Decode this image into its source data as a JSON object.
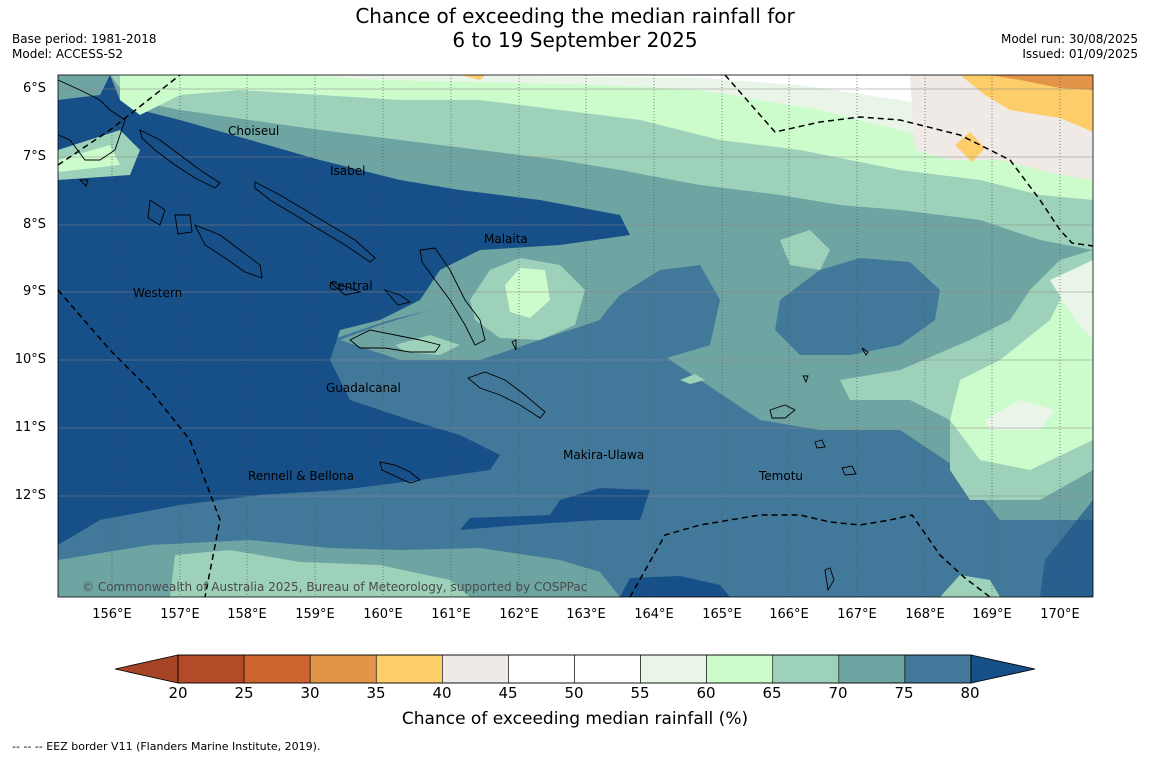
{
  "title": {
    "line1": "Chance of exceeding the median rainfall for",
    "line2": "6 to 19 September 2025"
  },
  "meta": {
    "base_period": "Base period: 1981-2018",
    "model": "Model: ACCESS-S2",
    "model_run": "Model run: 30/08/2025",
    "issued": "Issued: 01/09/2025"
  },
  "map": {
    "lat_labels": [
      "6°S",
      "7°S",
      "8°S",
      "9°S",
      "10°S",
      "11°S",
      "12°S"
    ],
    "lon_labels": [
      "156°E",
      "157°E",
      "158°E",
      "159°E",
      "160°E",
      "161°E",
      "162°E",
      "163°E",
      "164°E",
      "165°E",
      "166°E",
      "167°E",
      "168°E",
      "169°E",
      "170°E"
    ],
    "regions": [
      "Choiseul",
      "Isabel",
      "Malaita",
      "Western",
      "Central",
      "Guadalcanal",
      "Makira-Ulawa",
      "Rennell & Bellona",
      "Temotu"
    ],
    "copyright": "© Commonwealth of Australia 2025, Bureau of Meteorology, supported by COSPPac"
  },
  "colorbar": {
    "title": "Chance of exceeding median rainfall (%)",
    "ticks": [
      "20",
      "25",
      "30",
      "35",
      "40",
      "45",
      "50",
      "55",
      "60",
      "65",
      "70",
      "75",
      "80"
    ],
    "colors": [
      "#a64426",
      "#b34a28",
      "#cd6430",
      "#e29448",
      "#fdcd6a",
      "#efeae6",
      "#ffffff",
      "#ffffff",
      "#eaf5ea",
      "#ccfccc",
      "#9dd1b9",
      "#6ea4a2",
      "#42789a",
      "#174f88"
    ]
  },
  "legend_note": "--  --  -- EEZ border V11 (Flanders Marine Institute, 2019)."
}
